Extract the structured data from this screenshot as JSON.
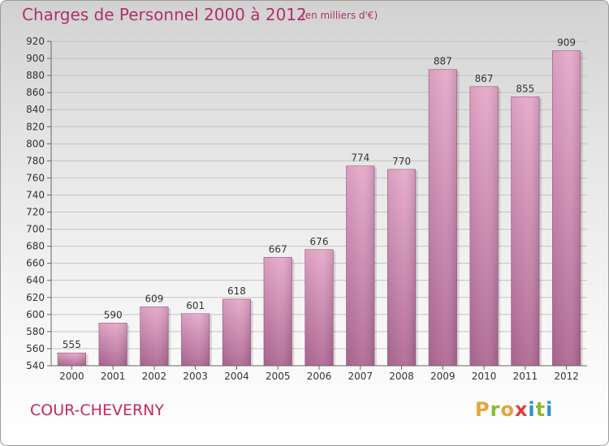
{
  "title": "Charges de Personnel 2000 à 2012",
  "subtitle": "(en milliers d'€)",
  "commune": "COUR-CHEVERNY",
  "logo": "Proxiti",
  "colors": {
    "bar": "#d88fb8",
    "title": "#b0306e"
  },
  "chart_data": {
    "type": "bar",
    "title": "Charges de Personnel 2000 à 2012",
    "subtitle": "(en milliers d'€)",
    "xlabel": "",
    "ylabel": "",
    "categories": [
      "2000",
      "2001",
      "2002",
      "2003",
      "2004",
      "2005",
      "2006",
      "2007",
      "2008",
      "2009",
      "2010",
      "2011",
      "2012"
    ],
    "values": [
      555,
      590,
      609,
      601,
      618,
      667,
      676,
      774,
      770,
      887,
      867,
      855,
      909
    ],
    "ylim": [
      540,
      920
    ],
    "yticks": [
      540,
      560,
      580,
      600,
      620,
      640,
      660,
      680,
      700,
      720,
      740,
      760,
      780,
      800,
      820,
      840,
      860,
      880,
      900,
      920
    ],
    "grid": true,
    "legend": "none"
  }
}
